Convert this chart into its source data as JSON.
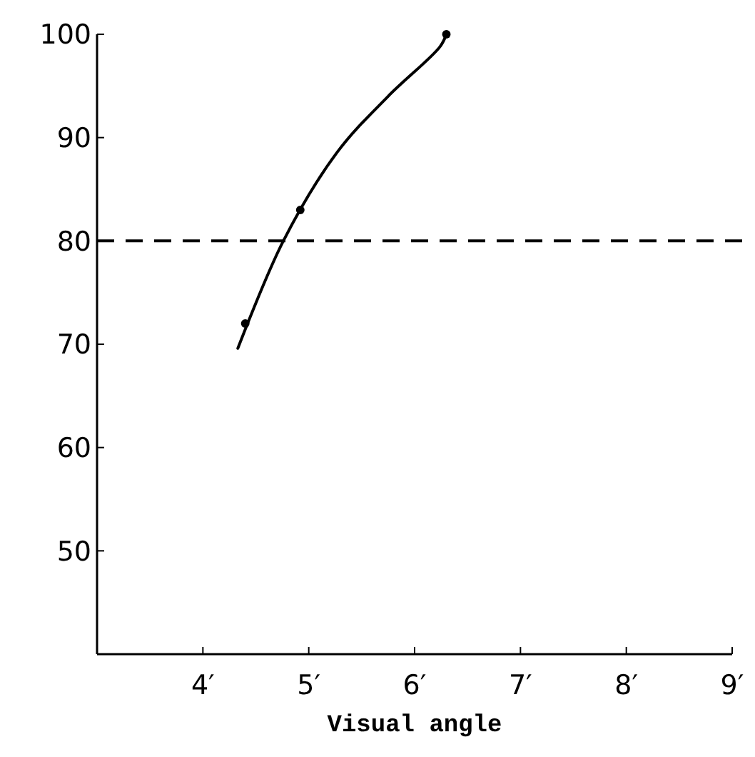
{
  "chart_data": {
    "type": "scatter",
    "xlabel": "Visual angle",
    "xlim": [
      3,
      9
    ],
    "ylim": [
      40,
      100
    ],
    "xticks": [
      {
        "value": 4,
        "label": "4′"
      },
      {
        "value": 5,
        "label": "5′"
      },
      {
        "value": 6,
        "label": "6′"
      },
      {
        "value": 7,
        "label": "7′"
      },
      {
        "value": 8,
        "label": "8′"
      },
      {
        "value": 9,
        "label": "9′"
      }
    ],
    "yticks": [
      50,
      60,
      70,
      80,
      90,
      100
    ],
    "grid": false,
    "marker": "circle",
    "series": [
      {
        "color": "#000000",
        "x": [
          4.4,
          4.92,
          6.3
        ],
        "values": [
          72,
          83,
          100
        ]
      },
      {
        "type": "line",
        "color": "#000000",
        "marker": "none",
        "line_style": "solid",
        "x": [
          4.33,
          4.76,
          5.27,
          5.75,
          6.24,
          6.3
        ],
        "values": [
          69.6,
          80,
          88.6,
          94,
          98.8,
          100
        ]
      }
    ],
    "ref_lines": [
      {
        "axis": "y",
        "value": 80,
        "color": "#000000",
        "line_style": "dashed"
      }
    ]
  }
}
